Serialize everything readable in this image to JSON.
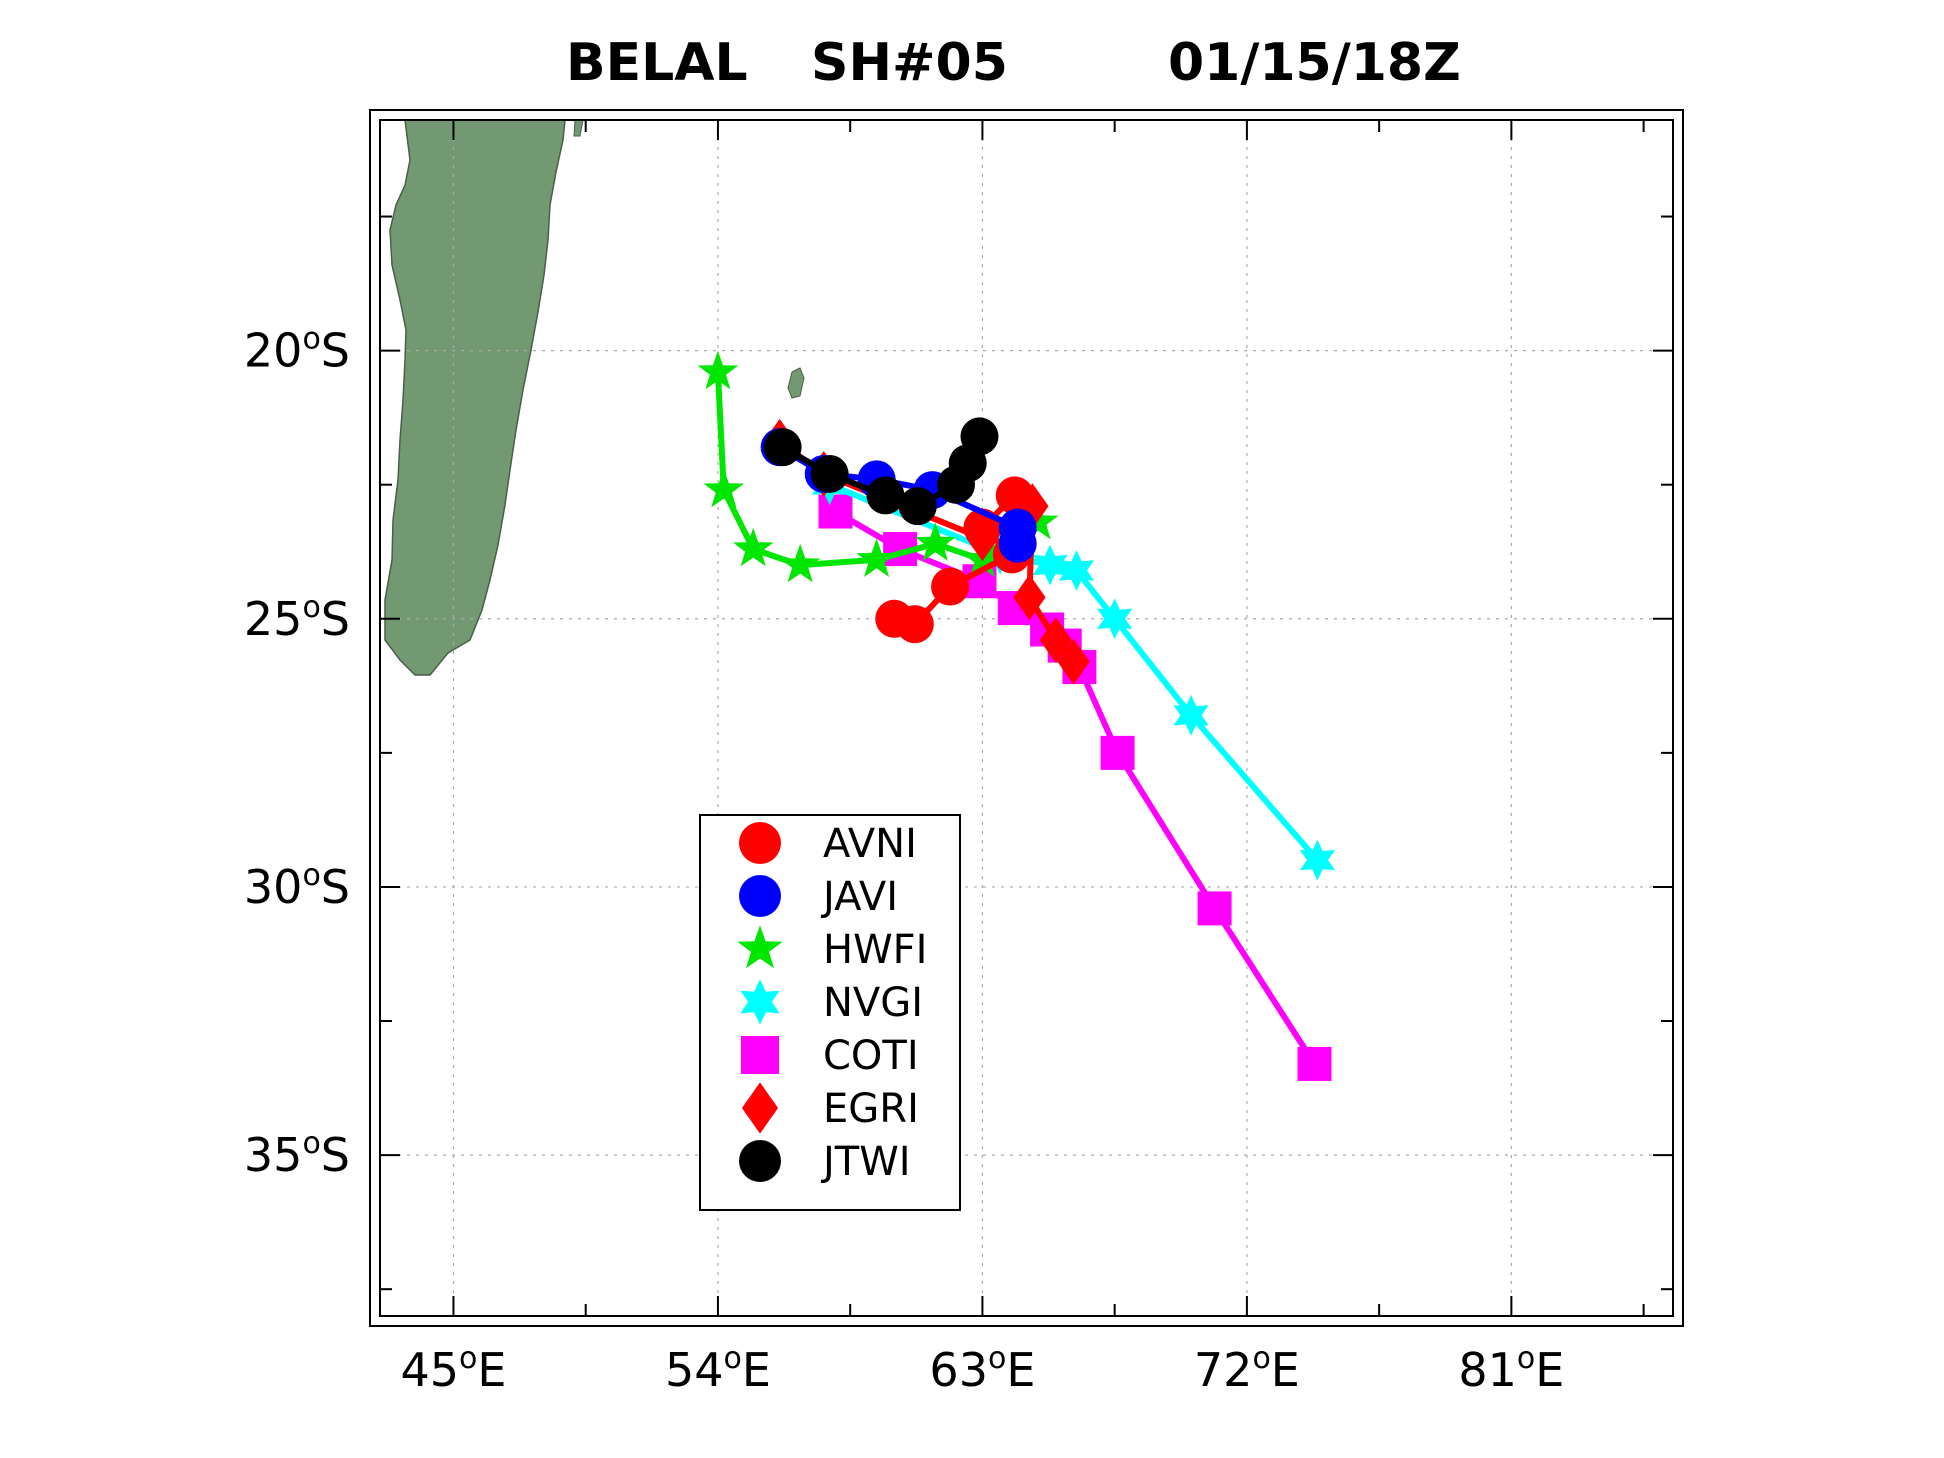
{
  "chart_data": {
    "type": "map-tracks",
    "title": {
      "storm": "BELAL",
      "id": "SH#05",
      "time": "01/15/18Z"
    },
    "x_axis": {
      "range": [
        42.5,
        86.5
      ],
      "ticks": [
        {
          "value": 45,
          "label": "45",
          "unit": "E"
        },
        {
          "value": 54,
          "label": "54",
          "unit": "E"
        },
        {
          "value": 63,
          "label": "63",
          "unit": "E"
        },
        {
          "value": 72,
          "label": "72",
          "unit": "E"
        },
        {
          "value": 81,
          "label": "81",
          "unit": "E"
        }
      ]
    },
    "y_axis": {
      "range": [
        -38.0,
        -15.7
      ],
      "ticks": [
        {
          "value": -20,
          "label": "20",
          "unit": "S"
        },
        {
          "value": -25,
          "label": "25",
          "unit": "S"
        },
        {
          "value": -30,
          "label": "30",
          "unit": "S"
        },
        {
          "value": -35,
          "label": "35",
          "unit": "S"
        }
      ]
    },
    "grid": true,
    "legend_position": "bottom-left",
    "land_color": "#739973",
    "series": [
      {
        "name": "AVNI",
        "color": "#ff0000",
        "marker": "circle",
        "points": [
          [
            64.1,
            -22.7
          ],
          [
            63.0,
            -23.3
          ],
          [
            64.0,
            -23.8
          ],
          [
            61.9,
            -24.4
          ],
          [
            60.7,
            -25.1
          ],
          [
            60.0,
            -25.0
          ]
        ]
      },
      {
        "name": "JAVI",
        "color": "#0000ff",
        "marker": "circle",
        "points": [
          [
            56.1,
            -21.8
          ],
          [
            57.6,
            -22.3
          ],
          [
            59.4,
            -22.4
          ],
          [
            61.3,
            -22.6
          ],
          [
            64.2,
            -23.3
          ],
          [
            64.2,
            -23.6
          ]
        ]
      },
      {
        "name": "HWFI",
        "color": "#00e600",
        "marker": "star5",
        "points": [
          [
            54.0,
            -20.4
          ],
          [
            54.2,
            -22.6
          ],
          [
            55.2,
            -23.7
          ],
          [
            56.8,
            -24.0
          ],
          [
            59.4,
            -23.9
          ],
          [
            61.4,
            -23.6
          ],
          [
            63.0,
            -23.9
          ],
          [
            64.0,
            -23.4
          ],
          [
            64.9,
            -23.2
          ]
        ]
      },
      {
        "name": "NVGI",
        "color": "#00ffff",
        "marker": "star6",
        "points": [
          [
            57.8,
            -22.5
          ],
          [
            63.6,
            -23.8
          ],
          [
            65.3,
            -24.0
          ],
          [
            66.2,
            -24.1
          ],
          [
            67.5,
            -25.0
          ],
          [
            70.1,
            -26.8
          ],
          [
            74.4,
            -29.5
          ]
        ]
      },
      {
        "name": "COTI",
        "color": "#ff00ff",
        "marker": "square",
        "points": [
          [
            58.0,
            -23.0
          ],
          [
            60.2,
            -23.7
          ],
          [
            62.9,
            -24.3
          ],
          [
            64.1,
            -24.8
          ],
          [
            65.2,
            -25.2
          ],
          [
            65.8,
            -25.5
          ],
          [
            66.3,
            -25.9
          ],
          [
            67.6,
            -27.5
          ],
          [
            70.9,
            -30.4
          ],
          [
            74.3,
            -33.3
          ]
        ]
      },
      {
        "name": "EGRI",
        "color": "#ff0000",
        "marker": "diamond",
        "points": [
          [
            56.1,
            -21.7
          ],
          [
            57.6,
            -22.3
          ],
          [
            63.0,
            -23.5
          ],
          [
            64.2,
            -23.2
          ],
          [
            64.7,
            -22.9
          ],
          [
            64.6,
            -24.6
          ],
          [
            65.5,
            -25.4
          ],
          [
            66.1,
            -25.8
          ]
        ]
      },
      {
        "name": "JTWI",
        "color": "#000000",
        "marker": "circle",
        "points": [
          [
            56.2,
            -21.8
          ],
          [
            57.8,
            -22.3
          ],
          [
            59.7,
            -22.7
          ],
          [
            60.8,
            -22.9
          ],
          [
            62.1,
            -22.5
          ],
          [
            62.5,
            -22.1
          ],
          [
            62.9,
            -21.6
          ]
        ]
      }
    ]
  }
}
